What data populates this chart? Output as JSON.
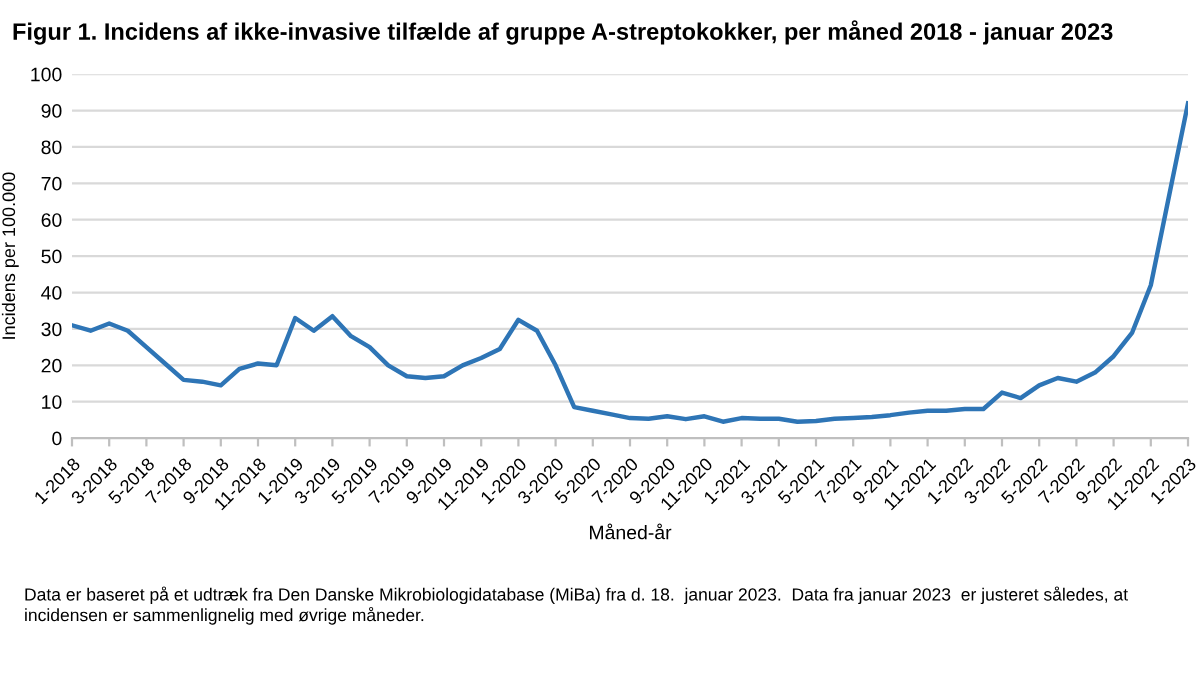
{
  "chart_data": {
    "type": "line",
    "title": "Figur 1. Incidens af ikke-invasive tilfælde af gruppe A-streptokokker, per måned 2018 - januar 2023",
    "xlabel": "Måned-år",
    "ylabel": "Incidens per 100.000",
    "categories": [
      "1-2018",
      null,
      "3-2018",
      null,
      "5-2018",
      null,
      "7-2018",
      null,
      "9-2018",
      null,
      "11-2018",
      null,
      "1-2019",
      null,
      "3-2019",
      null,
      "5-2019",
      null,
      "7-2019",
      null,
      "9-2019",
      null,
      "11-2019",
      null,
      "1-2020",
      null,
      "3-2020",
      null,
      "5-2020",
      null,
      "7-2020",
      null,
      "9-2020",
      null,
      "11-2020",
      null,
      "1-2021",
      null,
      "3-2021",
      null,
      "5-2021",
      null,
      "7-2021",
      null,
      "9-2021",
      null,
      "11-2021",
      null,
      "1-2022",
      null,
      "3-2022",
      null,
      "5-2022",
      null,
      "7-2022",
      null,
      "9-2022",
      null,
      "11-2022",
      null,
      "1-2023"
    ],
    "series": [
      {
        "color": "#2e75b6",
        "values": [
          31,
          29.5,
          31.5,
          29.5,
          25,
          20.5,
          16,
          15.5,
          14.5,
          19,
          20.5,
          20,
          33,
          29.5,
          33.5,
          28,
          25,
          20,
          17,
          16.5,
          17,
          20,
          22,
          24.5,
          32.5,
          29.5,
          20,
          8.5,
          7.5,
          6.5,
          5.5,
          5.3,
          6,
          5.2,
          6,
          4.5,
          5.5,
          5.3,
          5.3,
          4.5,
          4.7,
          5.3,
          5.5,
          5.8,
          6.3,
          7,
          7.5,
          7.5,
          8,
          8,
          12.5,
          11,
          14.5,
          16.5,
          15.5,
          18,
          22.5,
          29,
          42,
          67,
          92
        ]
      }
    ],
    "ylim": [
      0,
      100
    ],
    "yticks": [
      0,
      10,
      20,
      30,
      40,
      50,
      60,
      70,
      80,
      90,
      100
    ],
    "grid": "y",
    "legend": false,
    "marker": "none",
    "line_style": "solid",
    "annotations": [
      "Data er baseret på et udtræk fra Den Danske Mikrobiologidatabase (MiBa) fra d. 18.  januar 2023.  Data fra januar 2023  er justeret således, at incidensen er sammenlignelig med øvrige måneder."
    ]
  }
}
